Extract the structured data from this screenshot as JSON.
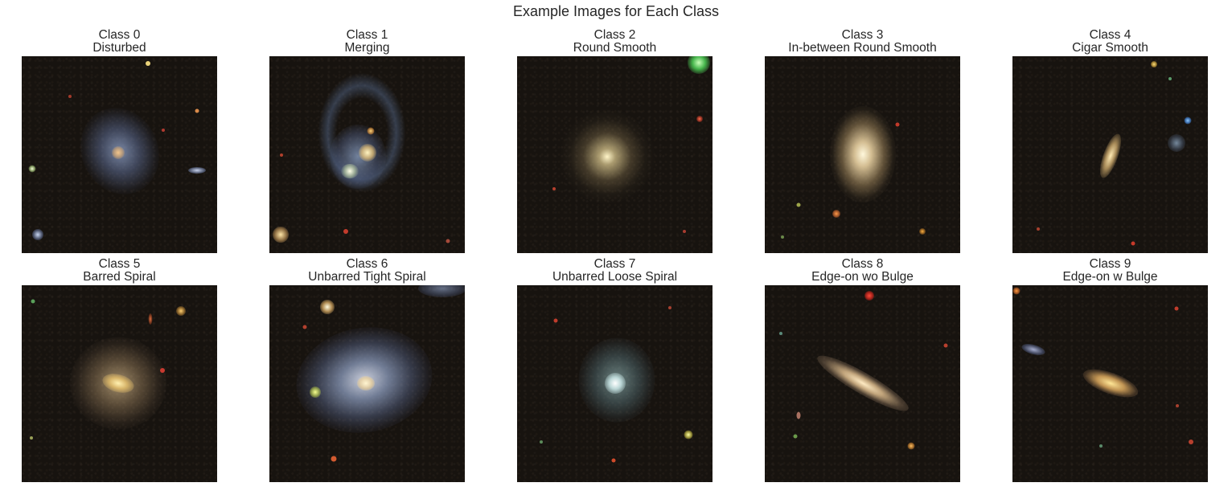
{
  "figure": {
    "title": "Example Images for Each Class"
  },
  "panels": [
    {
      "class_label": "Class 0",
      "name": "Disturbed"
    },
    {
      "class_label": "Class 1",
      "name": "Merging"
    },
    {
      "class_label": "Class 2",
      "name": "Round Smooth"
    },
    {
      "class_label": "Class 3",
      "name": "In-between Round Smooth"
    },
    {
      "class_label": "Class 4",
      "name": "Cigar Smooth"
    },
    {
      "class_label": "Class 5",
      "name": "Barred Spiral"
    },
    {
      "class_label": "Class 6",
      "name": "Unbarred Tight Spiral"
    },
    {
      "class_label": "Class 7",
      "name": "Unbarred Loose Spiral"
    },
    {
      "class_label": "Class 8",
      "name": "Edge-on wo Bulge"
    },
    {
      "class_label": "Class 9",
      "name": "Edge-on w Bulge"
    }
  ]
}
